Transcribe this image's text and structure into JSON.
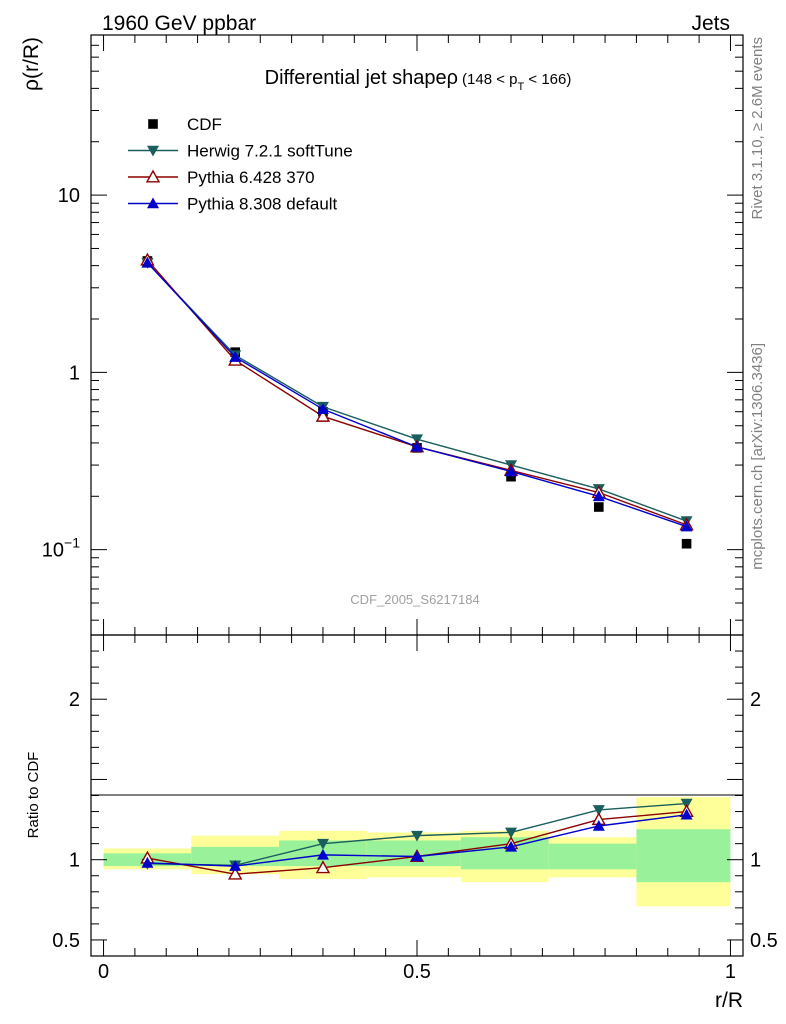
{
  "header": {
    "left": "1960 GeV ppbar",
    "right": "Jets"
  },
  "side_text": {
    "top": "Rivet 3.1.10, ≥ 2.6M events",
    "bottom": "mcplots.cern.ch [arXiv:1306.3436]"
  },
  "watermark": "CDF_2005_S6217184",
  "chart_data": [
    {
      "type": "line",
      "panel": "main",
      "title": "Differential jet shape",
      "title_symbol": "ρ",
      "title_range": [
        "(148 < p",
        "T",
        " < 166)"
      ],
      "ylabel": "ρ(r/R)",
      "yscale": "log",
      "ylim": [
        0.033,
        80
      ],
      "xlim": [
        -0.02,
        1.02
      ],
      "y_ticks": [
        {
          "value": 10,
          "label": "10"
        },
        {
          "value": 1,
          "label": "1"
        },
        {
          "value": 0.1,
          "label": "10",
          "sup": "−1"
        }
      ],
      "x": [
        0.07,
        0.21,
        0.35,
        0.5,
        0.65,
        0.79,
        0.93
      ],
      "series": [
        {
          "name": "CDF",
          "color": "#000000",
          "marker": "square",
          "values": [
            4.25,
            1.3,
            0.6,
            0.375,
            0.258,
            0.174,
            0.108
          ]
        },
        {
          "name": "Herwig 7.2.1 softTune",
          "color": "#1b5e5e",
          "marker": "triangle-down",
          "values": [
            4.15,
            1.25,
            0.64,
            0.42,
            0.3,
            0.22,
            0.145
          ]
        },
        {
          "name": "Pythia 6.428 370",
          "color": "#8b0000",
          "marker": "triangle-up-open",
          "values": [
            4.3,
            1.17,
            0.565,
            0.38,
            0.28,
            0.21,
            0.138
          ]
        },
        {
          "name": "Pythia 8.308 default",
          "color": "#0000cc",
          "marker": "triangle-up",
          "values": [
            4.15,
            1.22,
            0.62,
            0.38,
            0.276,
            0.2,
            0.135
          ]
        }
      ]
    },
    {
      "type": "line",
      "panel": "ratio",
      "ylabel": "Ratio to CDF",
      "xlabel": "r/R",
      "ylim": [
        0.4,
        2.4
      ],
      "xlim": [
        -0.02,
        1.02
      ],
      "y_ticks": [
        {
          "value": 2,
          "label": "2"
        },
        {
          "value": 1,
          "label": "1"
        },
        {
          "value": 0.5,
          "label": "0.5"
        }
      ],
      "x_ticks": [
        {
          "value": 0,
          "label": "0"
        },
        {
          "value": 0.5,
          "label": "0.5"
        },
        {
          "value": 1,
          "label": "1"
        }
      ],
      "bands": [
        {
          "x0": 0.0,
          "x1": 0.14,
          "stat": [
            0.96,
            1.04
          ],
          "syst": [
            0.94,
            1.07
          ]
        },
        {
          "x0": 0.14,
          "x1": 0.28,
          "stat": [
            0.96,
            1.08
          ],
          "syst": [
            0.91,
            1.15
          ]
        },
        {
          "x0": 0.28,
          "x1": 0.42,
          "stat": [
            0.96,
            1.12
          ],
          "syst": [
            0.88,
            1.18
          ]
        },
        {
          "x0": 0.42,
          "x1": 0.57,
          "stat": [
            0.96,
            1.12
          ],
          "syst": [
            0.89,
            1.17
          ]
        },
        {
          "x0": 0.57,
          "x1": 0.71,
          "stat": [
            0.94,
            1.14
          ],
          "syst": [
            0.86,
            1.18
          ]
        },
        {
          "x0": 0.71,
          "x1": 0.85,
          "stat": [
            0.94,
            1.1
          ],
          "syst": [
            0.89,
            1.14
          ]
        },
        {
          "x0": 0.85,
          "x1": 1.0,
          "stat": [
            0.86,
            1.19
          ],
          "syst": [
            0.71,
            1.39
          ]
        }
      ],
      "x": [
        0.07,
        0.21,
        0.35,
        0.5,
        0.65,
        0.79,
        0.93
      ],
      "series": [
        {
          "name": "Herwig 7.2.1 softTune",
          "color": "#1b5e5e",
          "marker": "triangle-down",
          "values": [
            0.975,
            0.965,
            1.1,
            1.15,
            1.17,
            1.31,
            1.35
          ]
        },
        {
          "name": "Pythia 6.428 370",
          "color": "#8b0000",
          "marker": "triangle-up-open",
          "values": [
            1.01,
            0.91,
            0.95,
            1.02,
            1.1,
            1.25,
            1.3
          ]
        },
        {
          "name": "Pythia 8.308 default",
          "color": "#0000cc",
          "marker": "triangle-up",
          "values": [
            0.98,
            0.96,
            1.03,
            1.02,
            1.08,
            1.21,
            1.28
          ]
        }
      ]
    }
  ]
}
